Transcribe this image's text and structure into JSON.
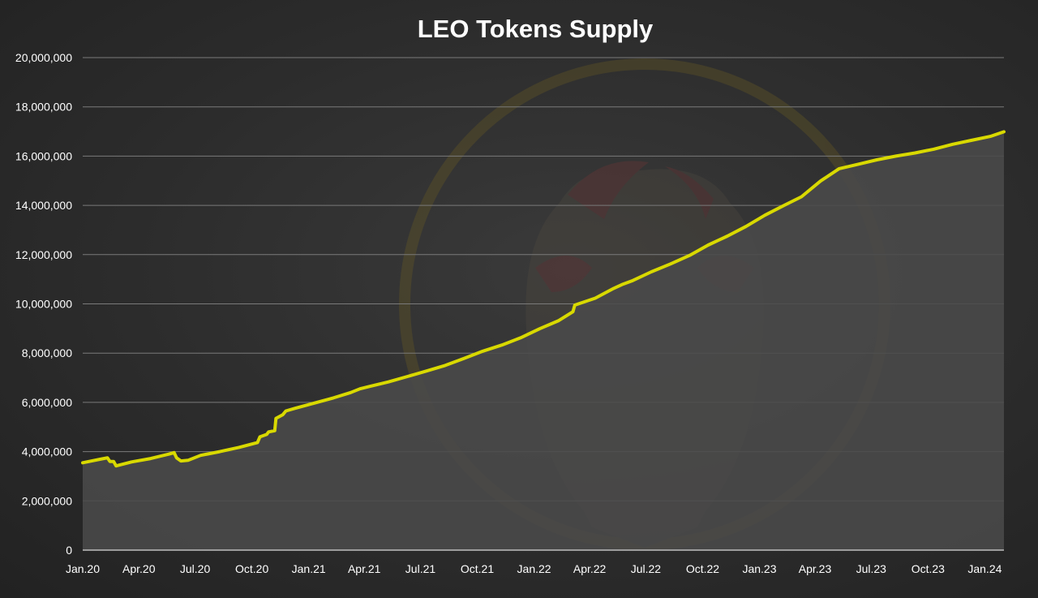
{
  "chart_data": {
    "type": "area",
    "title": "LEO Tokens Supply",
    "xlabel": "",
    "ylabel": "",
    "ylim": [
      0,
      20000000
    ],
    "y_ticks": [
      0,
      2000000,
      4000000,
      6000000,
      8000000,
      10000000,
      12000000,
      14000000,
      16000000,
      18000000,
      20000000
    ],
    "y_tick_labels": [
      "0",
      "2,000,000",
      "4,000,000",
      "6,000,000",
      "8,000,000",
      "10,000,000",
      "12,000,000",
      "14,000,000",
      "16,000,000",
      "18,000,000",
      "20,000,000"
    ],
    "x_tick_labels": [
      "Jan.20",
      "Apr.20",
      "Jul.20",
      "Oct.20",
      "Jan.21",
      "Apr.21",
      "Jul.21",
      "Oct.21",
      "Jan.22",
      "Apr.22",
      "Jul.22",
      "Oct.22",
      "Jan.23",
      "Apr.23",
      "Jul.23",
      "Oct.23",
      "Jan.24"
    ],
    "grid": true,
    "legend": "none",
    "series": [
      {
        "line_color": "#d9d900",
        "fill_color": "#4a4a4a",
        "points": [
          [
            "2020-01-01",
            3550000
          ],
          [
            "2020-02-10",
            3750000
          ],
          [
            "2020-02-14",
            3600000
          ],
          [
            "2020-02-20",
            3600000
          ],
          [
            "2020-02-24",
            3420000
          ],
          [
            "2020-03-20",
            3580000
          ],
          [
            "2020-04-20",
            3720000
          ],
          [
            "2020-05-20",
            3900000
          ],
          [
            "2020-05-28",
            3960000
          ],
          [
            "2020-06-01",
            3750000
          ],
          [
            "2020-06-08",
            3620000
          ],
          [
            "2020-06-20",
            3650000
          ],
          [
            "2020-07-10",
            3850000
          ],
          [
            "2020-08-10",
            4000000
          ],
          [
            "2020-09-10",
            4170000
          ],
          [
            "2020-10-10",
            4370000
          ],
          [
            "2020-10-14",
            4600000
          ],
          [
            "2020-10-25",
            4700000
          ],
          [
            "2020-10-28",
            4800000
          ],
          [
            "2020-11-07",
            4850000
          ],
          [
            "2020-11-09",
            5350000
          ],
          [
            "2020-11-20",
            5500000
          ],
          [
            "2020-11-25",
            5650000
          ],
          [
            "2020-12-10",
            5760000
          ],
          [
            "2021-01-10",
            5970000
          ],
          [
            "2021-02-10",
            6180000
          ],
          [
            "2021-03-10",
            6400000
          ],
          [
            "2021-03-25",
            6550000
          ],
          [
            "2021-04-10",
            6650000
          ],
          [
            "2021-05-10",
            6830000
          ],
          [
            "2021-06-10",
            7050000
          ],
          [
            "2021-07-10",
            7270000
          ],
          [
            "2021-08-10",
            7500000
          ],
          [
            "2021-09-10",
            7790000
          ],
          [
            "2021-10-10",
            8080000
          ],
          [
            "2021-11-10",
            8330000
          ],
          [
            "2021-12-10",
            8620000
          ],
          [
            "2022-01-10",
            8990000
          ],
          [
            "2022-02-10",
            9320000
          ],
          [
            "2022-03-05",
            9680000
          ],
          [
            "2022-03-08",
            9950000
          ],
          [
            "2022-04-10",
            10230000
          ],
          [
            "2022-05-10",
            10630000
          ],
          [
            "2022-05-25",
            10800000
          ],
          [
            "2022-06-10",
            10950000
          ],
          [
            "2022-07-10",
            11300000
          ],
          [
            "2022-08-10",
            11620000
          ],
          [
            "2022-09-10",
            11970000
          ],
          [
            "2022-10-10",
            12390000
          ],
          [
            "2022-11-10",
            12750000
          ],
          [
            "2022-12-10",
            13140000
          ],
          [
            "2023-01-10",
            13600000
          ],
          [
            "2023-02-10",
            14000000
          ],
          [
            "2023-03-10",
            14350000
          ],
          [
            "2023-04-10",
            14990000
          ],
          [
            "2023-05-10",
            15490000
          ],
          [
            "2023-06-10",
            15670000
          ],
          [
            "2023-07-10",
            15850000
          ],
          [
            "2023-08-10",
            16000000
          ],
          [
            "2023-09-10",
            16130000
          ],
          [
            "2023-10-10",
            16280000
          ],
          [
            "2023-11-10",
            16480000
          ],
          [
            "2023-12-10",
            16640000
          ],
          [
            "2024-01-10",
            16800000
          ],
          [
            "2024-02-01",
            16990000
          ]
        ]
      }
    ]
  }
}
